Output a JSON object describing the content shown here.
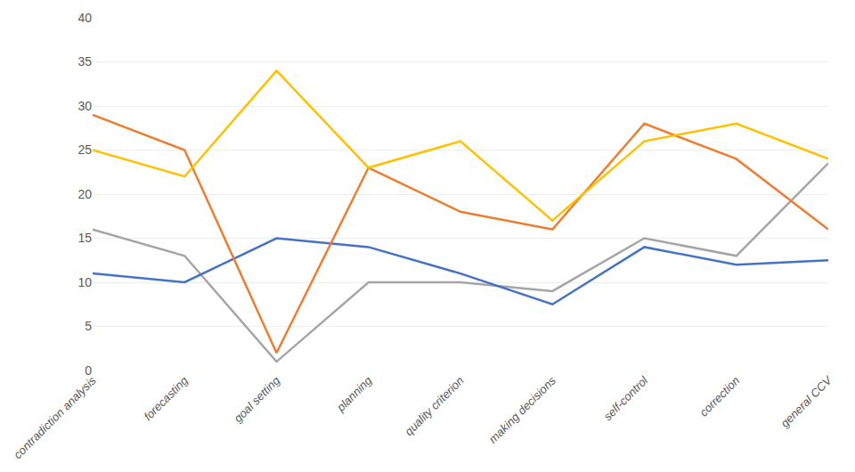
{
  "chart_data": {
    "type": "line",
    "categories": [
      "contradiction analysis",
      "forecasting",
      "goal setting",
      "planning",
      "quality criterion",
      "making decisions",
      "self-control",
      "correction",
      "general CCV"
    ],
    "series": [
      {
        "color": "#A5A5A5",
        "values": [
          16,
          13,
          1,
          10,
          10,
          9,
          15,
          13,
          23.5
        ]
      },
      {
        "color": "#4472C4",
        "values": [
          11,
          10,
          15,
          14,
          11,
          7.5,
          14,
          12,
          12.5
        ]
      },
      {
        "color": "#ED7D31",
        "values": [
          29,
          25,
          2,
          23,
          18,
          16,
          28,
          24,
          16
        ]
      },
      {
        "color": "#FFC000",
        "values": [
          25,
          22,
          34,
          23,
          26,
          17,
          26,
          28,
          24
        ]
      }
    ],
    "ylim": [
      0,
      40
    ],
    "yticks": [
      0,
      5,
      10,
      15,
      20,
      25,
      30,
      35,
      40
    ],
    "grid": true
  }
}
